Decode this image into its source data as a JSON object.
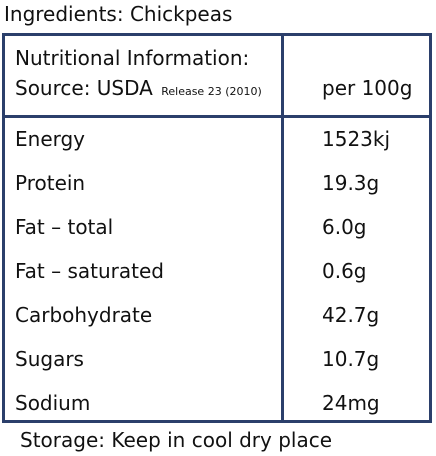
{
  "ingredients": "Ingredients: Chickpeas",
  "header": {
    "title_line1": "Nutritional Information:",
    "source_label": "Source: USDA",
    "source_release": "Release 23 (2010)",
    "per_label": "per 100g"
  },
  "rows": [
    {
      "label": "Energy",
      "value": "1523kj"
    },
    {
      "label": "Protein",
      "value": "19.3g"
    },
    {
      "label": "Fat – total",
      "value": "6.0g"
    },
    {
      "label": "Fat – saturated",
      "value": "0.6g"
    },
    {
      "label": "Carbohydrate",
      "value": "42.7g"
    },
    {
      "label": "Sugars",
      "value": "10.7g"
    },
    {
      "label": "Sodium",
      "value": "24mg"
    }
  ],
  "storage": "Storage: Keep in cool dry place",
  "colors": {
    "border": "#2b3f6b",
    "text": "#111111",
    "background": "#ffffff"
  }
}
